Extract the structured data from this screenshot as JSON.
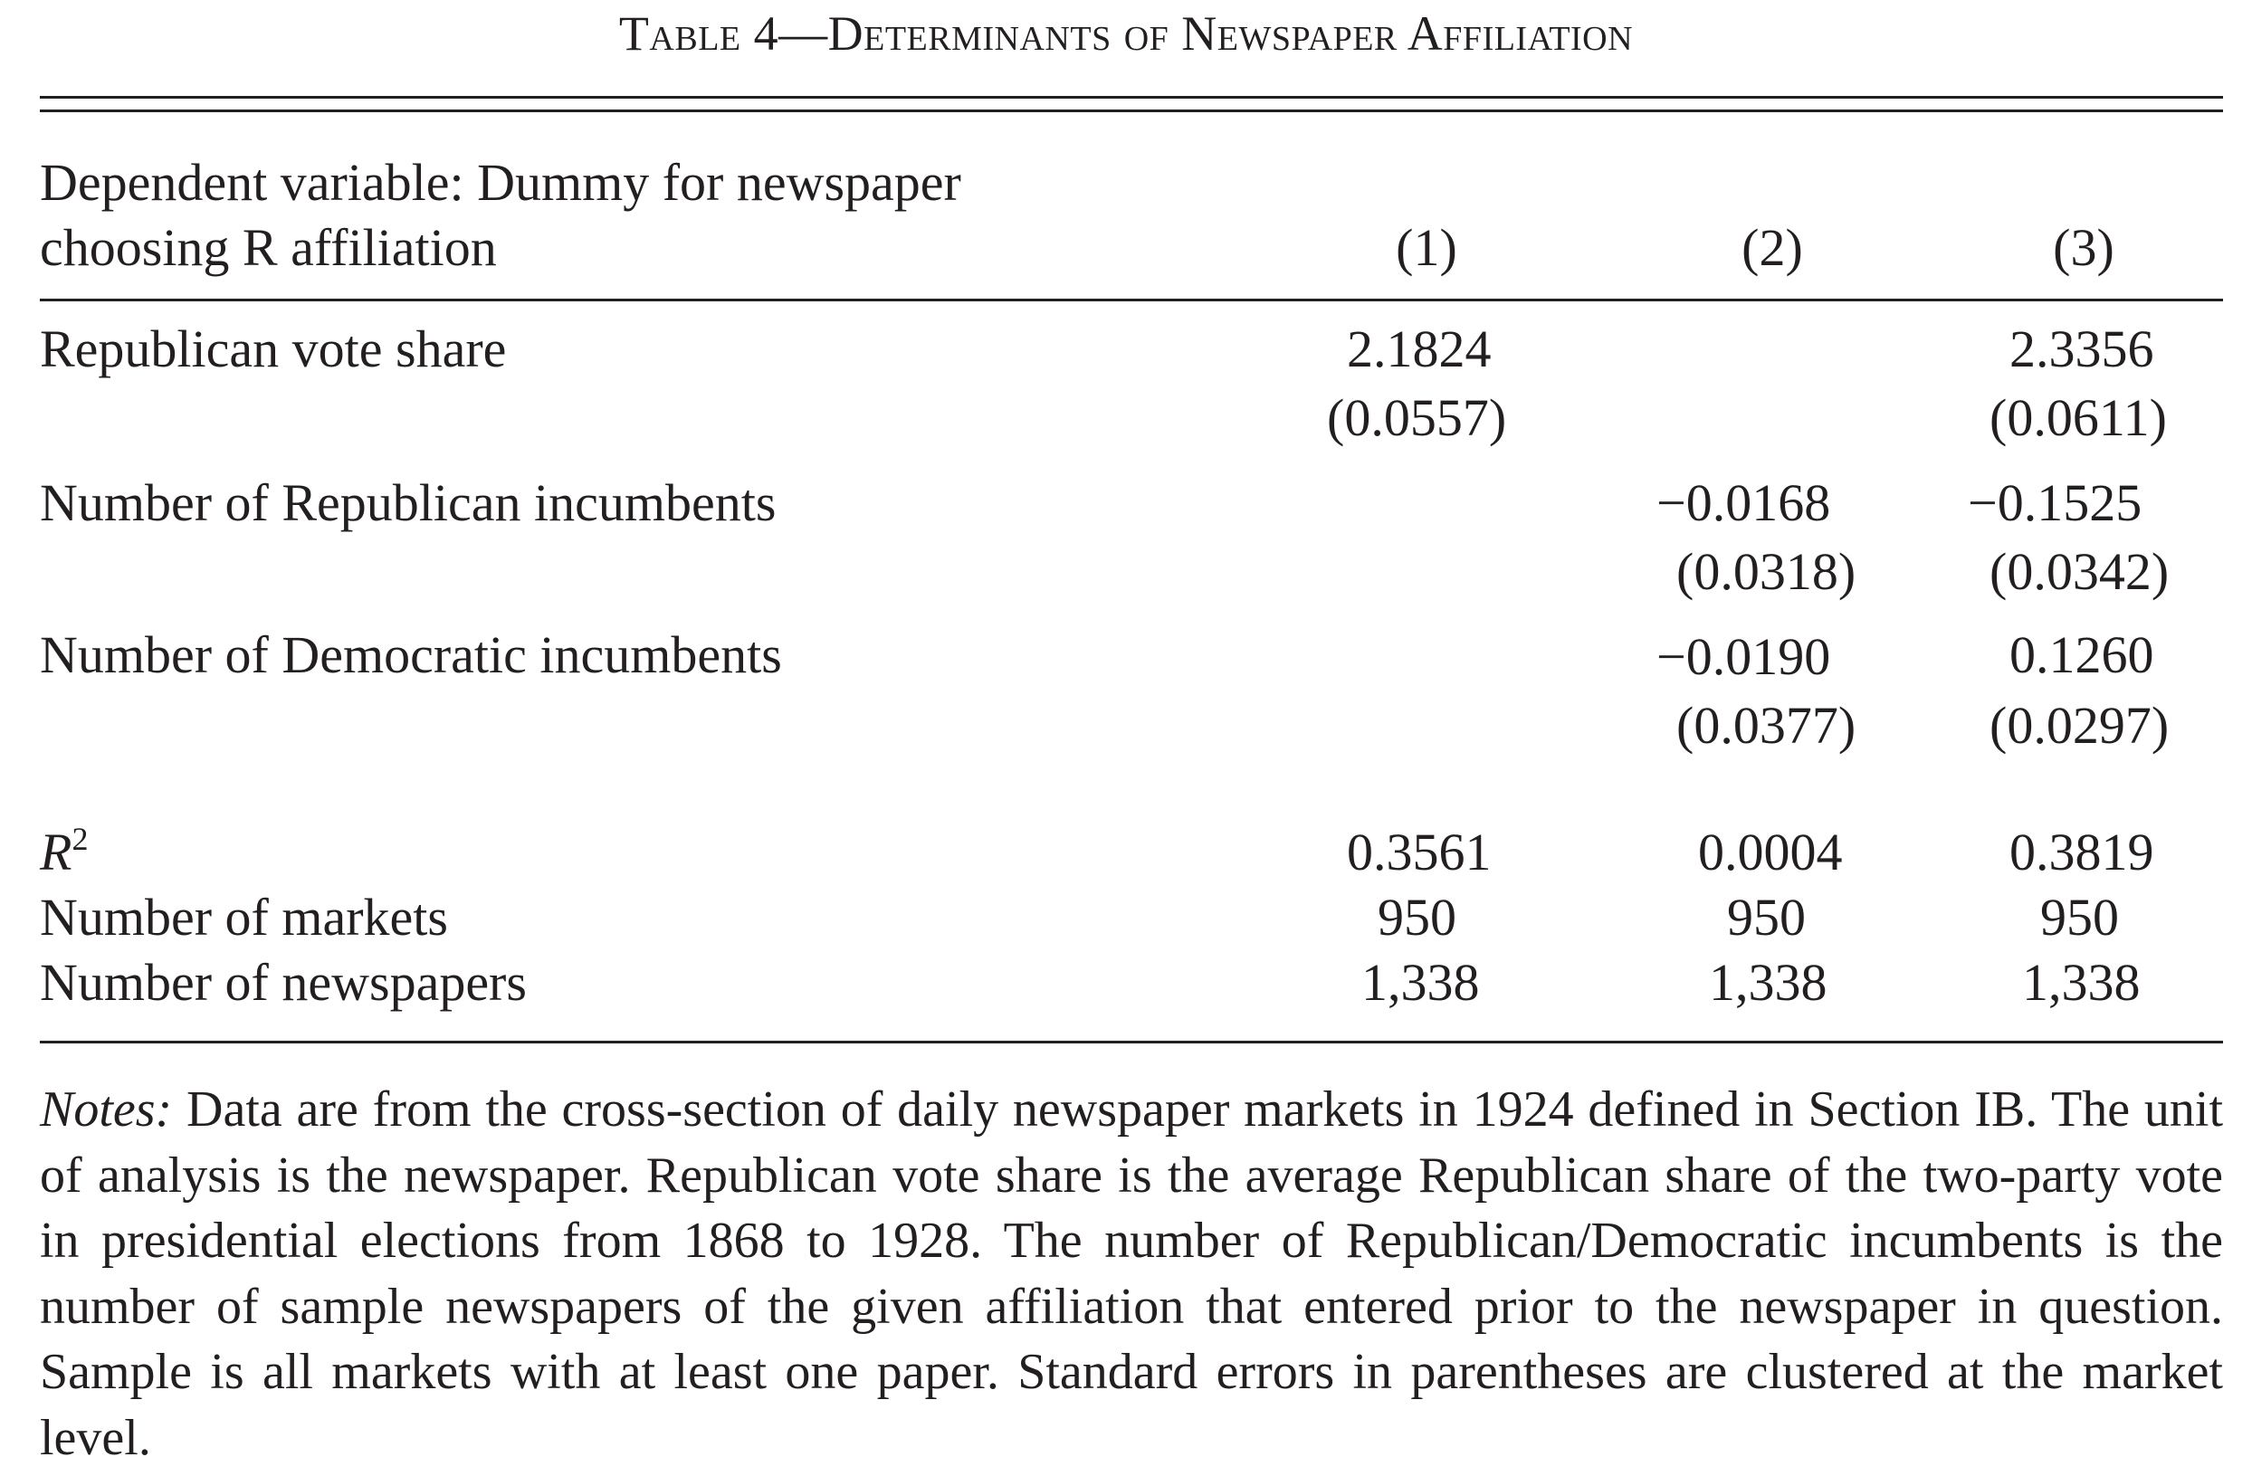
{
  "table": {
    "title": "Table 4—Determinants of Newspaper Affiliation",
    "header": {
      "dependent_line1": "Dependent variable: Dummy for newspaper",
      "dependent_line2": "choosing R affiliation",
      "columns": [
        "(1)",
        "(2)",
        "(3)"
      ]
    },
    "rows": {
      "rep_vote_share": {
        "label": "Republican vote share",
        "c1": "2.1824",
        "c1_se": "(0.0557)",
        "c2": "",
        "c2_se": "",
        "c3": "2.3356",
        "c3_se": "(0.0611)"
      },
      "rep_incumbents": {
        "label": "Number of Republican incumbents",
        "c1": "",
        "c1_se": "",
        "c2": "−0.0168",
        "c2_se": "(0.0318)",
        "c3": "−0.1525",
        "c3_se": "(0.0342)"
      },
      "dem_incumbents": {
        "label": "Number of Democratic incumbents",
        "c1": "",
        "c1_se": "",
        "c2": "−0.0190",
        "c2_se": "(0.0377)",
        "c3": "0.1260",
        "c3_se": "(0.0297)"
      },
      "r2": {
        "label": "R",
        "label_sup": "2",
        "c1": "0.3561",
        "c2": "0.0004",
        "c3": "0.3819"
      },
      "markets": {
        "label": "Number of markets",
        "c1": "950",
        "c2": "950",
        "c3": "950"
      },
      "newspapers": {
        "label": "Number of newspapers",
        "c1": "1,338",
        "c2": "1,338",
        "c3": "1,338"
      }
    },
    "notes": {
      "lead": "Notes:",
      "text": " Data are from the cross-section of daily newspaper markets in 1924 defined in Section IB. The unit of analysis is the newspaper. Republican vote share is the average Republican share of the two-party vote in presidential elections from 1868 to 1928. The number of Republican/Democratic incumbents is the number of sample newspapers of the given affiliation that entered prior to the newspaper in question. Sample is all markets with at least one paper. Standard errors in parentheses are clustered at the market level."
    }
  }
}
